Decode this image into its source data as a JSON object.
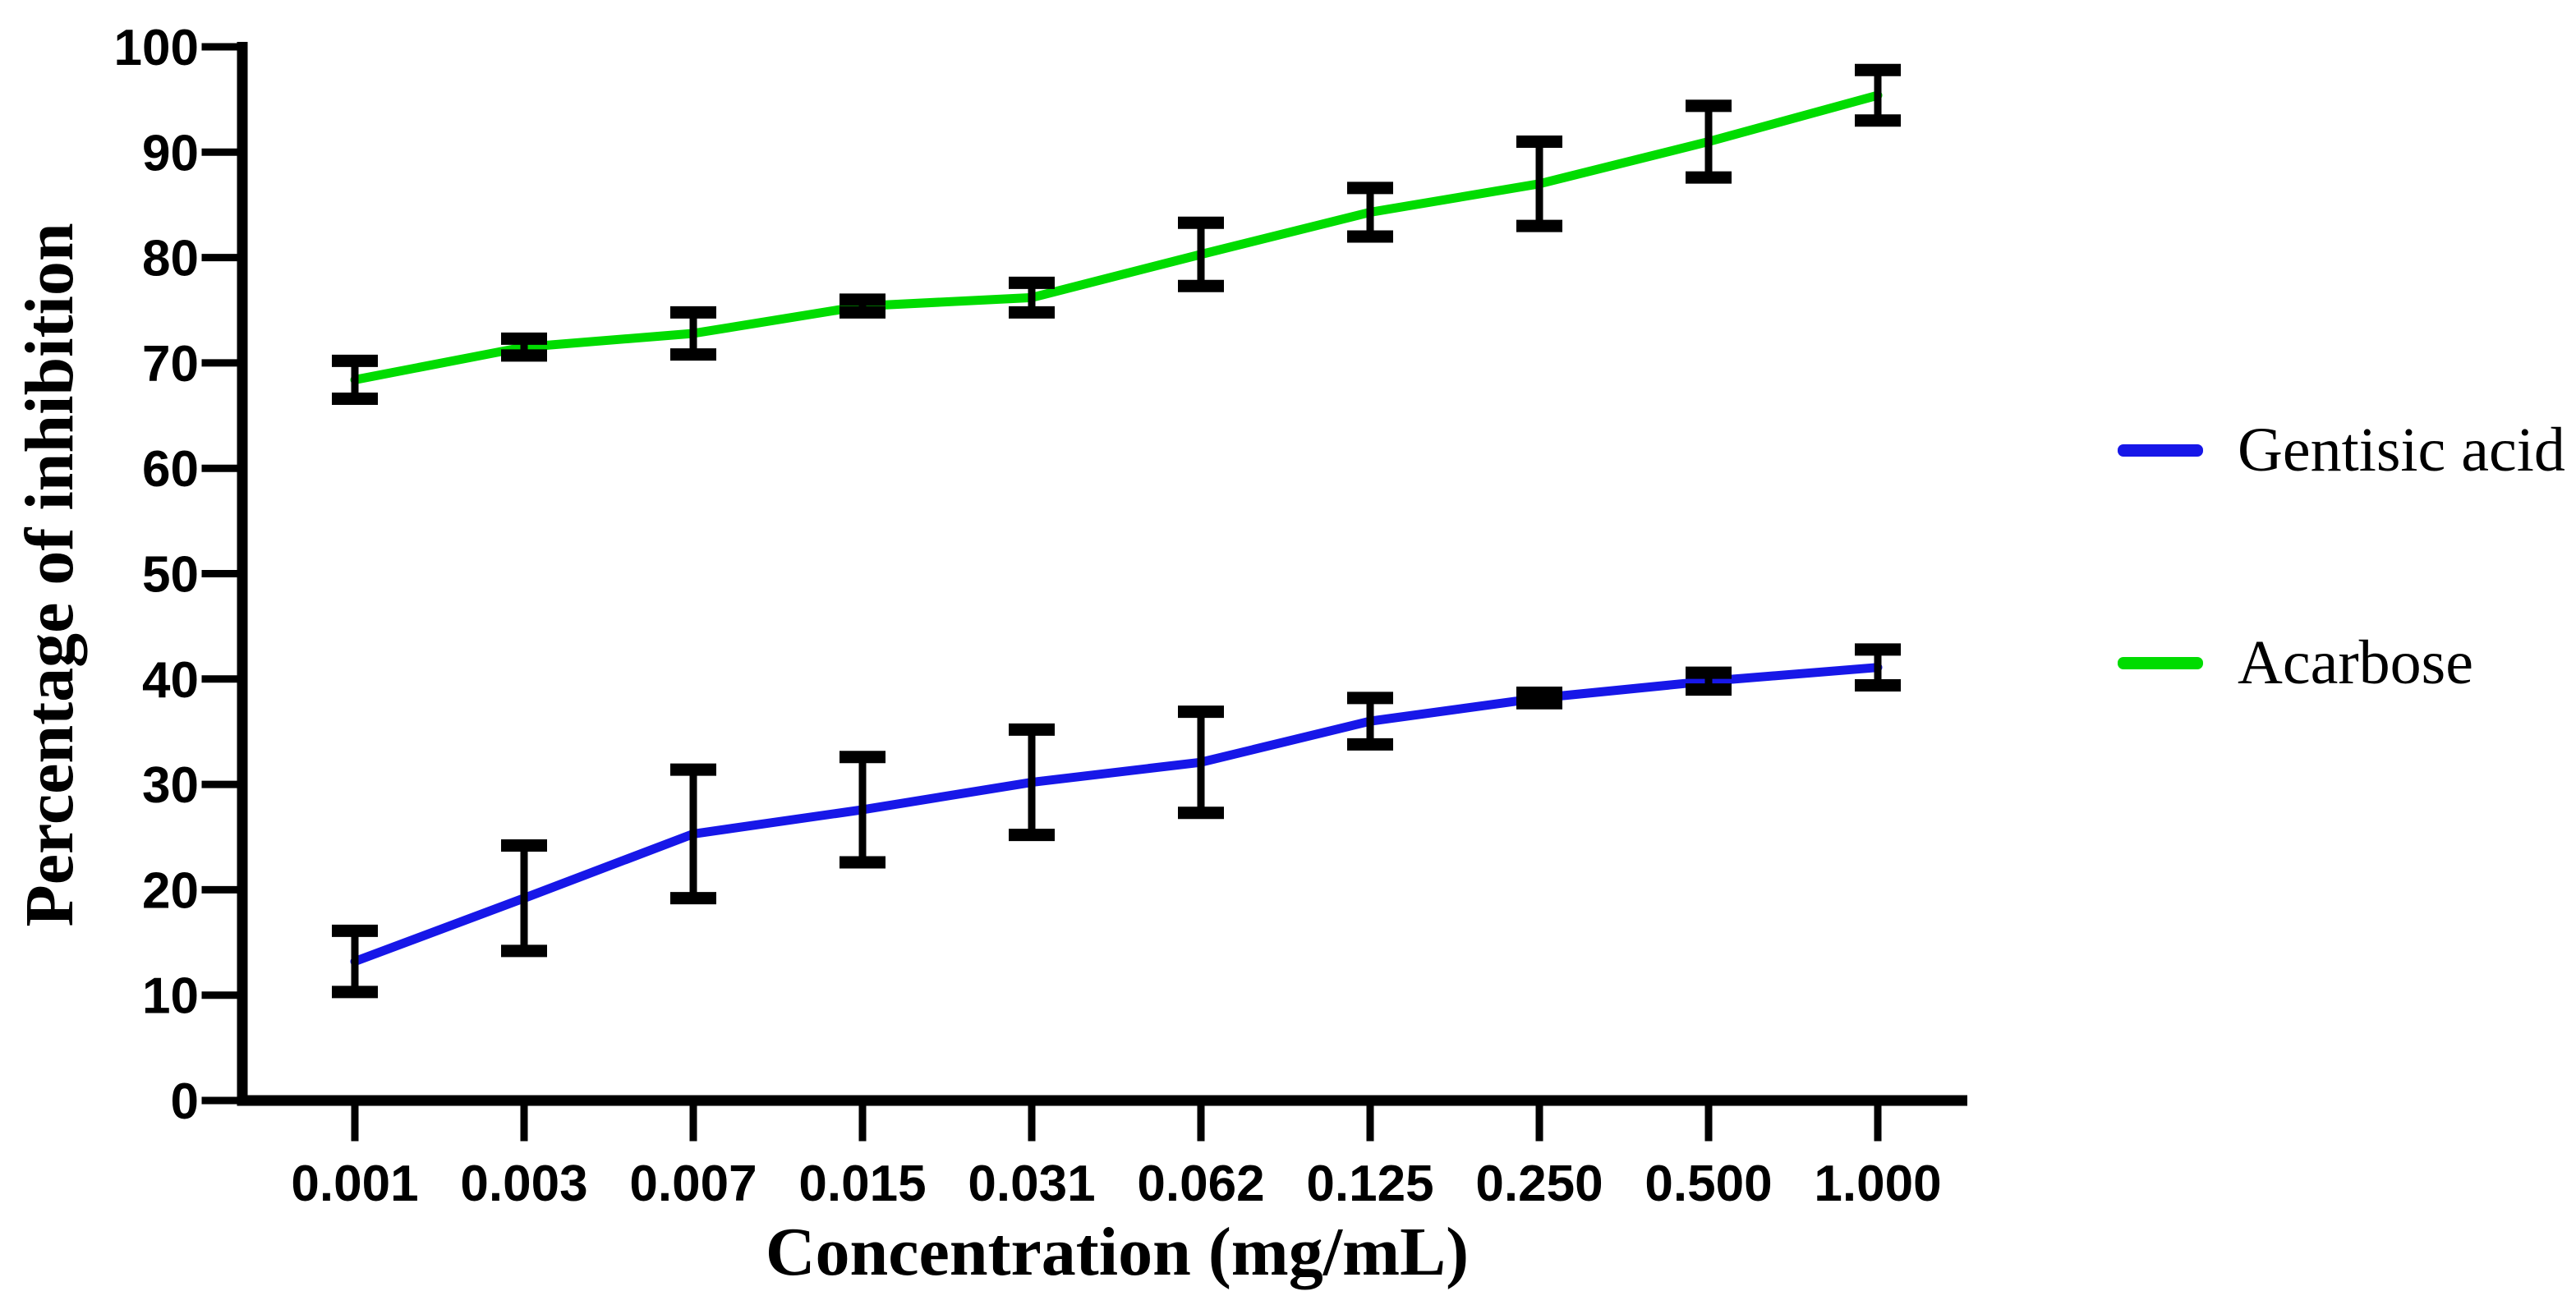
{
  "chart_data": {
    "type": "line",
    "title": "",
    "xlabel": "Concentration (mg/mL)",
    "ylabel": "Percentage of inhibition",
    "x_tick_labels": [
      "0.001",
      "0.003",
      "0.007",
      "0.015",
      "0.031",
      "0.062",
      "0.125",
      "0.250",
      "0.500",
      "1.000"
    ],
    "y_axis": {
      "min": 0,
      "max": 100,
      "step": 10
    },
    "grid": false,
    "legend_position": "right-center",
    "error_bar_color": "#000000",
    "axis_color": "#000000",
    "series": [
      {
        "name": "Gentisic acid",
        "color": "#1717e8",
        "values": [
          13.2,
          19.2,
          25.3,
          27.6,
          30.2,
          32.1,
          36.0,
          38.2,
          39.8,
          41.1
        ],
        "errors": [
          2.9,
          5.0,
          6.1,
          5.0,
          5.0,
          4.8,
          2.2,
          0.5,
          0.8,
          1.7
        ]
      },
      {
        "name": "Acarbose",
        "color": "#00dc00",
        "values": [
          68.4,
          71.5,
          72.8,
          75.4,
          76.2,
          80.3,
          84.3,
          87.0,
          91.0,
          95.4
        ],
        "errors": [
          1.8,
          0.8,
          2.0,
          0.6,
          1.4,
          3.0,
          2.3,
          4.0,
          3.4,
          2.4
        ]
      }
    ]
  }
}
